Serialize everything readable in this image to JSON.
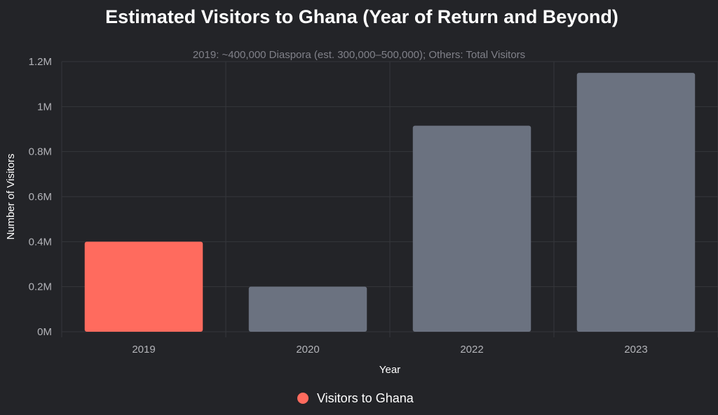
{
  "chart_data": {
    "type": "bar",
    "title": "Estimated Visitors to Ghana (Year of Return and Beyond)",
    "subtitle": "2019: ~400,000 Diaspora (est. 300,000–500,000); Others: Total Visitors",
    "xlabel": "Year",
    "ylabel": "Number of Visitors",
    "categories": [
      "2019",
      "2020",
      "2022",
      "2023"
    ],
    "series": [
      {
        "name": "Visitors to Ghana",
        "values": [
          400000,
          200000,
          915000,
          1150000
        ],
        "colors": [
          "#ff6b5e",
          "#6b7280",
          "#6b7280",
          "#6b7280"
        ]
      }
    ],
    "ylim": [
      0,
      1200000
    ],
    "yticks": [
      0,
      200000,
      400000,
      600000,
      800000,
      1000000,
      1200000
    ],
    "ytick_labels": [
      "0M",
      "0.2M",
      "0.4M",
      "0.6M",
      "0.8M",
      "1M",
      "1.2M"
    ],
    "grid": true,
    "legend_position": "bottom",
    "legend_color": "#ff6b5e"
  }
}
